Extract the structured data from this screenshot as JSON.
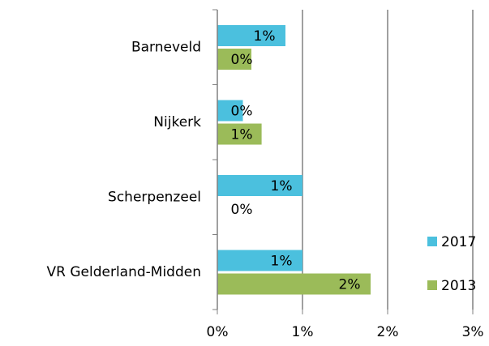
{
  "chart_data": {
    "type": "hbar",
    "categories": [
      "Barneveld",
      "Nijkerk",
      "Scherpenzeel",
      "VR Gelderland-Midden"
    ],
    "series": [
      {
        "name": "2017",
        "color": "#4bc0de",
        "values": [
          0.8,
          0.3,
          1.0,
          1.0
        ],
        "value_labels": [
          "1%",
          "0%",
          "1%",
          "1%"
        ]
      },
      {
        "name": "2013",
        "color": "#9bbb59",
        "values": [
          0.4,
          0.52,
          0,
          1.8
        ],
        "value_labels": [
          "0%",
          "1%",
          "0%",
          "2%"
        ]
      }
    ],
    "xlim": [
      0,
      3
    ],
    "xticks": [
      {
        "value": 0,
        "label": "0%"
      },
      {
        "value": 1,
        "label": "1%"
      },
      {
        "value": 2,
        "label": "2%"
      },
      {
        "value": 3,
        "label": "3%"
      }
    ],
    "grid": true,
    "legend": "right"
  }
}
